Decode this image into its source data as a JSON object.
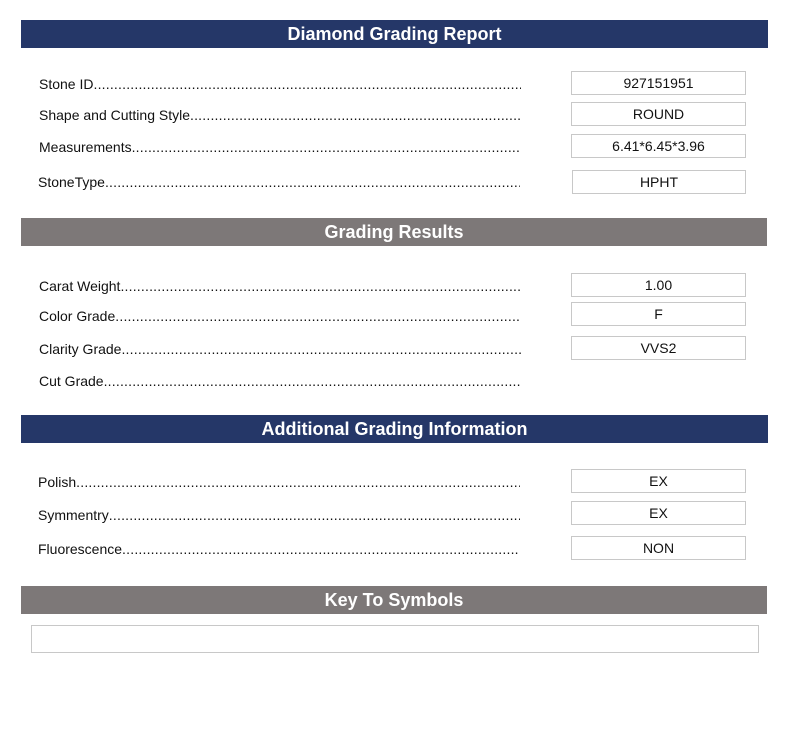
{
  "sections": {
    "report": {
      "title": "Diamond Grading Report",
      "rows": [
        {
          "label": "Stone ID",
          "value": "927151951"
        },
        {
          "label": "Shape and Cutting Style",
          "value": "ROUND"
        },
        {
          "label": "Measurements",
          "value": "6.41*6.45*3.96"
        },
        {
          "label": "StoneType",
          "value": "HPHT"
        }
      ]
    },
    "results": {
      "title": "Grading Results",
      "rows": [
        {
          "label": "Carat Weight",
          "value": "1.00"
        },
        {
          "label": "Color Grade",
          "value": "F"
        },
        {
          "label": "Clarity Grade",
          "value": "VVS2"
        },
        {
          "label": "Cut Grade"
        }
      ]
    },
    "additional": {
      "title": "Additional Grading Information",
      "rows": [
        {
          "label": "Polish",
          "value": "EX"
        },
        {
          "label": "Symmentry",
          "value": "EX"
        },
        {
          "label": "Fluorescence",
          "value": "NON"
        }
      ]
    },
    "key": {
      "title": "Key To Symbols"
    }
  },
  "colors": {
    "navy": "#253768",
    "gray": "#7d7878"
  }
}
